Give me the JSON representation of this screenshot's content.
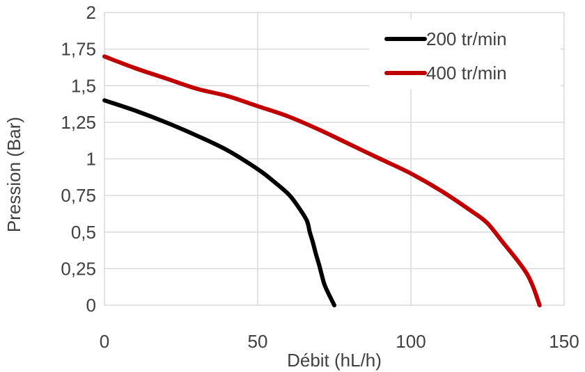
{
  "chart_data": {
    "type": "line",
    "title": "",
    "xlabel": "Débit (hL/h)",
    "ylabel": "Pression (Bar)",
    "xlim": [
      0,
      150
    ],
    "ylim": [
      0,
      2
    ],
    "x_ticks": [
      0,
      50,
      100,
      150
    ],
    "x_tick_labels": [
      "0",
      "50",
      "100",
      "150"
    ],
    "y_ticks": [
      0,
      0.25,
      0.5,
      0.75,
      1,
      1.25,
      1.5,
      1.75,
      2
    ],
    "y_tick_labels": [
      "0",
      "0,25",
      "0,5",
      "0,75",
      "1",
      "1,25",
      "1,5",
      "1,75",
      "2"
    ],
    "grid": true,
    "legend_position": "top-right",
    "series": [
      {
        "name": "200 tr/min",
        "color": "#000000",
        "x": [
          0,
          10,
          20,
          30,
          40,
          50,
          55,
          60,
          63,
          66,
          67,
          68,
          69,
          70,
          71,
          72,
          75
        ],
        "y": [
          1.4,
          1.33,
          1.25,
          1.16,
          1.06,
          0.93,
          0.85,
          0.76,
          0.68,
          0.58,
          0.5,
          0.43,
          0.35,
          0.28,
          0.2,
          0.13,
          0
        ]
      },
      {
        "name": "400 tr/min",
        "color": "#c00000",
        "x": [
          0,
          10,
          20,
          30,
          40,
          50,
          60,
          70,
          80,
          90,
          100,
          110,
          120,
          125,
          130,
          135,
          138,
          140,
          142
        ],
        "y": [
          1.7,
          1.62,
          1.55,
          1.48,
          1.43,
          1.36,
          1.29,
          1.2,
          1.1,
          1.0,
          0.9,
          0.78,
          0.64,
          0.56,
          0.43,
          0.3,
          0.21,
          0.12,
          0
        ]
      }
    ]
  }
}
